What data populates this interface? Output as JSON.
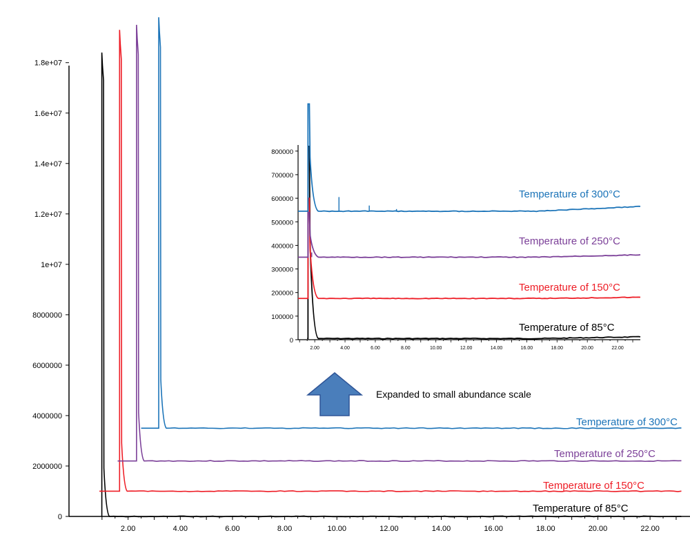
{
  "chart_data": [
    {
      "id": "main",
      "type": "line",
      "xlim": [
        0.0,
        23.2
      ],
      "ylim": [
        0,
        19800000
      ],
      "xticks": [
        2,
        4,
        6,
        8,
        10,
        12,
        14,
        16,
        18,
        20,
        22
      ],
      "xtick_labels": [
        "2.00",
        "4.00",
        "6.00",
        "8.00",
        "10.00",
        "12.00",
        "14.00",
        "16.00",
        "18.00",
        "20.00",
        "22.00"
      ],
      "yticks": [
        0,
        2000000,
        4000000,
        6000000,
        8000000,
        10000000,
        12000000,
        14000000,
        16000000,
        18000000
      ],
      "ytick_labels": [
        "0",
        "2000000",
        "4000000",
        "6000000",
        "8000000",
        "1e+07",
        "1.2e+07",
        "1.4e+07",
        "1.6e+07",
        "1.8e+07"
      ],
      "series": [
        {
          "name": "Temperature of 85°C",
          "color": "#000000",
          "x_offset": 0.0,
          "baseline": 0,
          "start": 1.0,
          "peak_x": 1.02,
          "peak_y": 18400000,
          "end_y": 0
        },
        {
          "name": "Temperature of 150°C",
          "color": "#ee1c25",
          "x_offset": 0.0,
          "baseline": 1000000,
          "start": 0.9,
          "peak_x": 1.7,
          "peak_y": 19300000,
          "end_y": 1000000
        },
        {
          "name": "Temperature of 250°C",
          "color": "#7b3f98",
          "x_offset": 0.0,
          "baseline": 2200000,
          "start": 1.6,
          "peak_x": 2.35,
          "peak_y": 19500000,
          "end_y": 2200000
        },
        {
          "name": "Temperature of 300°C",
          "color": "#1a73b8",
          "x_offset": 0.0,
          "baseline": 3500000,
          "start": 2.5,
          "peak_x": 3.2,
          "peak_y": 19800000,
          "end_y": 3500000
        }
      ]
    },
    {
      "id": "inset",
      "type": "line",
      "xlim": [
        0.9,
        23.5
      ],
      "ylim": [
        0,
        820000
      ],
      "xticks": [
        2,
        4,
        6,
        8,
        10,
        12,
        14,
        16,
        18,
        20,
        22
      ],
      "xtick_labels": [
        "2.00",
        "4.00",
        "6.00",
        "8.00",
        "10.00",
        "12.00",
        "14.00",
        "16.00",
        "18.00",
        "20.00",
        "22.00"
      ],
      "yticks": [
        0,
        100000,
        200000,
        300000,
        400000,
        500000,
        600000,
        700000,
        800000
      ],
      "ytick_labels": [
        "0",
        "100000",
        "200000",
        "300000",
        "400000",
        "500000",
        "600000",
        "700000",
        "800000"
      ],
      "series": [
        {
          "name": "Temperature of 85°C",
          "color": "#000000",
          "baseline": 5000,
          "peak_y": 820000,
          "end_y": 12000
        },
        {
          "name": "Temperature of 150°C",
          "color": "#ee1c25",
          "baseline": 175000,
          "peak_y": 600000,
          "end_y": 180000
        },
        {
          "name": "Temperature of 250°C",
          "color": "#7b3f98",
          "baseline": 350000,
          "peak_y": 540000,
          "end_y": 360000
        },
        {
          "name": "Temperature of 300°C",
          "color": "#1a73b8",
          "baseline": 545000,
          "peak_y": 1000000,
          "end_y": 565000
        }
      ]
    }
  ],
  "labels": {
    "main_85": "Temperature of 85°C",
    "main_150": "Temperature of 150°C",
    "main_250": "Temperature of 250°C",
    "main_300": "Temperature of 300°C",
    "inset_85": "Temperature of 85°C",
    "inset_150": "Temperature of 150°C",
    "inset_250": "Temperature of 250°C",
    "inset_300": "Temperature of 300°C",
    "arrow_note": "Expanded to small abundance scale"
  },
  "colors": {
    "black": "#000000",
    "red": "#ee1c25",
    "purple": "#7b3f98",
    "blue": "#1a73b8",
    "arrow_fill": "#4a7ebb",
    "arrow_stroke": "#2f5597"
  }
}
